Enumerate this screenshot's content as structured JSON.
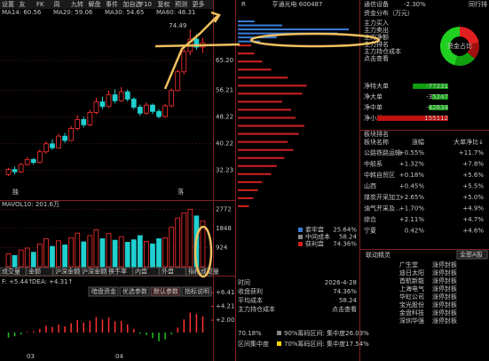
{
  "toolbar": [
    "设置",
    "友",
    "FK",
    "周",
    "九转",
    "解盘",
    "事件",
    "加自选",
    "F10",
    "复权",
    "预测",
    "更多"
  ],
  "ma_labels": [
    {
      "text": "MA14: 60.56",
      "color": "#ffffff"
    },
    {
      "text": "MA20: 59.06",
      "color": "#ffd400"
    },
    {
      "text": "MA30: 54.65",
      "color": "#ff50ff"
    },
    {
      "text": "MA60: 48.31",
      "color": "#00e000"
    }
  ],
  "price_chart": {
    "high_label": "74.49",
    "ylim": [
      26,
      78
    ],
    "yticks": [
      {
        "value": 65.2,
        "label": "65.20"
      },
      {
        "value": 56.21,
        "label": "56.21"
      },
      {
        "value": 48.22,
        "label": "48.22"
      },
      {
        "value": 40.22,
        "label": "40.22"
      },
      {
        "value": 32.23,
        "label": "32.23"
      }
    ],
    "candles": [
      [
        31,
        32.5,
        33,
        30.5
      ],
      [
        32.5,
        31.8,
        33.4,
        31
      ],
      [
        31.8,
        34,
        34.5,
        31.5
      ],
      [
        34,
        35.5,
        36.2,
        33.6
      ],
      [
        35.5,
        34.6,
        36,
        34
      ],
      [
        34.6,
        37.8,
        38.5,
        34.3
      ],
      [
        37.8,
        40.2,
        41,
        37.2
      ],
      [
        40.2,
        39,
        41.5,
        38.4
      ],
      [
        39,
        42.5,
        43.2,
        38.8
      ],
      [
        42.5,
        41.2,
        43.5,
        40.5
      ],
      [
        41.2,
        44.8,
        45.6,
        41
      ],
      [
        44.8,
        47.5,
        48.8,
        44.2
      ],
      [
        47.5,
        45.9,
        48.3,
        45.1
      ],
      [
        45.9,
        49.6,
        50.4,
        45.5
      ],
      [
        49.6,
        52.8,
        54,
        49
      ],
      [
        52.8,
        51.4,
        54.3,
        50.6
      ],
      [
        51.4,
        54.9,
        56.1,
        51
      ],
      [
        54.9,
        53.1,
        56.6,
        52.4
      ],
      [
        53.1,
        55.8,
        57.2,
        52.8
      ],
      [
        55.8,
        53.6,
        56.5,
        52.9
      ],
      [
        53.6,
        51.2,
        54.2,
        50.5
      ],
      [
        51.2,
        49.4,
        52,
        48.6
      ],
      [
        49.4,
        51.8,
        52.6,
        48.9
      ],
      [
        51.8,
        49.9,
        52.3,
        49.1
      ],
      [
        49.9,
        48.4,
        50.6,
        47.8
      ],
      [
        48.4,
        51.6,
        52.1,
        48
      ],
      [
        51.6,
        56.2,
        56.8,
        51.2
      ],
      [
        56.2,
        61.8,
        62.4,
        55.9
      ],
      [
        61.8,
        67.9,
        68.5,
        61
      ],
      [
        67.9,
        71.6,
        74.49,
        66.8
      ],
      [
        71.6,
        69.2,
        73.1,
        68.4
      ],
      [
        69.2,
        70.5,
        72,
        67.5
      ]
    ],
    "markers": [
      "独",
      "落"
    ]
  },
  "volume_chart": {
    "title": "MAVOL10: 201.6万",
    "ylim": [
      0,
      3000
    ],
    "yticks": [
      2772,
      1848,
      924
    ],
    "values": [
      620,
      540,
      810,
      900,
      700,
      1100,
      1350,
      980,
      1250,
      1050,
      1400,
      1620,
      1200,
      1500,
      1780,
      1350,
      1600,
      1280,
      1450,
      1180,
      1300,
      1500,
      1220,
      1100,
      1350,
      1400,
      1900,
      2350,
      2600,
      2772,
      2450,
      2200
    ]
  },
  "indicator_tabs": [
    "成交量",
    "金额",
    "沪深金额",
    "沪深金额",
    "换手率",
    "内盘",
    "外盘",
    "指标成交量"
  ],
  "macd_tabs": [
    "暗盘资金",
    "优选参数",
    "默认参数",
    "指标说明"
  ],
  "macd_chart": {
    "dif_label": "F: +5.44↑",
    "dea_label": "DEA: +4.31↑",
    "ylim": [
      -3,
      7
    ],
    "yticks": [
      {
        "value": 6.41,
        "label": "+6.41"
      },
      {
        "value": 4.21,
        "label": "+4.21"
      },
      {
        "value": 2,
        "label": "+2.00"
      }
    ],
    "values": [
      -0.8,
      -0.6,
      -0.3,
      0.1,
      0.2,
      0.6,
      1.1,
      0.9,
      1.3,
      1,
      1.5,
      2,
      1.6,
      1.9,
      2.5,
      2.1,
      2.4,
      1.8,
      1.9,
      1.3,
      0.6,
      -0.2,
      -0.4,
      -0.9,
      -1.4,
      -1.1,
      -0.3,
      0.8,
      2.1,
      3.2,
      3,
      2.6
    ],
    "dates": [
      "03",
      "04"
    ]
  },
  "chips": {
    "flag": "R",
    "stock": "亨通光电 600487",
    "profit": {
      "color": "#d42020",
      "prices": [
        30,
        32,
        34,
        36,
        38,
        40,
        42,
        44,
        46,
        48,
        50,
        52,
        54,
        56,
        58,
        60,
        62,
        64,
        66,
        68,
        70
      ],
      "values": [
        10,
        14,
        18,
        22,
        30,
        35,
        42,
        50,
        45,
        55,
        60,
        52,
        48,
        40,
        58,
        62,
        45,
        30,
        22,
        15,
        12
      ]
    },
    "trapped": {
      "color": "#3a7bd5",
      "prices": [
        71,
        72,
        73,
        74,
        75,
        76
      ],
      "values": [
        20,
        35,
        90,
        100,
        40,
        15
      ]
    },
    "legend": [
      {
        "name": "套牢盘",
        "value": "25.64%",
        "color": "#3a7bd5"
      },
      {
        "name": "中间成本",
        "value": "58.24",
        "color": "#888888"
      },
      {
        "name": "获利盘",
        "value": "74.36%",
        "color": "#d42020"
      }
    ],
    "table": [
      [
        "时间",
        "2026-4-28"
      ],
      [
        "收盘获利",
        "74.36%"
      ],
      [
        "平均成本",
        "58.24"
      ],
      [
        "主力持仓成本",
        "点击查看"
      ]
    ],
    "ranges": [
      [
        "70.18%",
        "90%筹码区间: 集中度26.03%"
      ],
      [
        "区间集中度",
        "70%筹码区间: 集中度17.54%"
      ]
    ]
  },
  "sector": {
    "name": "通信设备",
    "change": "-2.30%",
    "peer": "同行排"
  },
  "funds": {
    "title": "资金分布（万元）",
    "donut_label": "资金占比",
    "shares": [
      {
        "value": 22,
        "color": "#e02020"
      },
      {
        "value": 14,
        "color": "#a01010"
      },
      {
        "value": 18,
        "color": "#10a010"
      },
      {
        "value": 46,
        "color": "#20d020"
      }
    ],
    "items": [
      "主力买入",
      "主力卖出",
      "主力净额",
      "主力排名",
      "主力持仓成本",
      "点击查看"
    ],
    "flows": [
      {
        "name": "净特大单",
        "value": -77231
      },
      {
        "name": "净大单",
        "value": -35247
      },
      {
        "name": "净中单",
        "value": -42634
      },
      {
        "name": "净小单",
        "value": 155112
      }
    ]
  },
  "ranking": {
    "title": "板块排名",
    "headers": [
      "板块名称",
      "涨幅",
      "大单净比↓"
    ],
    "rows": [
      [
        "公路铁路运输",
        "+0.55%",
        "+11.7%"
      ],
      [
        "中船系",
        "+1.32%",
        "+7.8%"
      ],
      [
        "中韩自贸区",
        "+0.18%",
        "+5.6%"
      ],
      [
        "山西",
        "+0.45%",
        "+5.5%"
      ],
      [
        "煤炭开采加工",
        "+2.65%",
        "+5.0%"
      ],
      [
        "油气开采及...",
        "+1.70%",
        "+4.9%"
      ],
      [
        "综合",
        "+2.11%",
        "+4.7%"
      ],
      [
        "宁夏",
        "0.42%",
        "+4.6%"
      ]
    ]
  },
  "linkage": {
    "title": "联动精灵",
    "tab": "全部A股",
    "rows": [
      [
        "广生堂",
        "涨停封板"
      ],
      [
        "迪日太阳",
        "涨停封板"
      ],
      [
        "首航新能",
        "涨停封板"
      ],
      [
        "上海电气",
        "涨停封板"
      ],
      [
        "华虹公司",
        "涨停封板"
      ],
      [
        "宝光股份",
        "涨停封板"
      ],
      [
        "金盘科技",
        "涨停封板"
      ],
      [
        "深圳华强",
        "涨停封板"
      ]
    ]
  }
}
